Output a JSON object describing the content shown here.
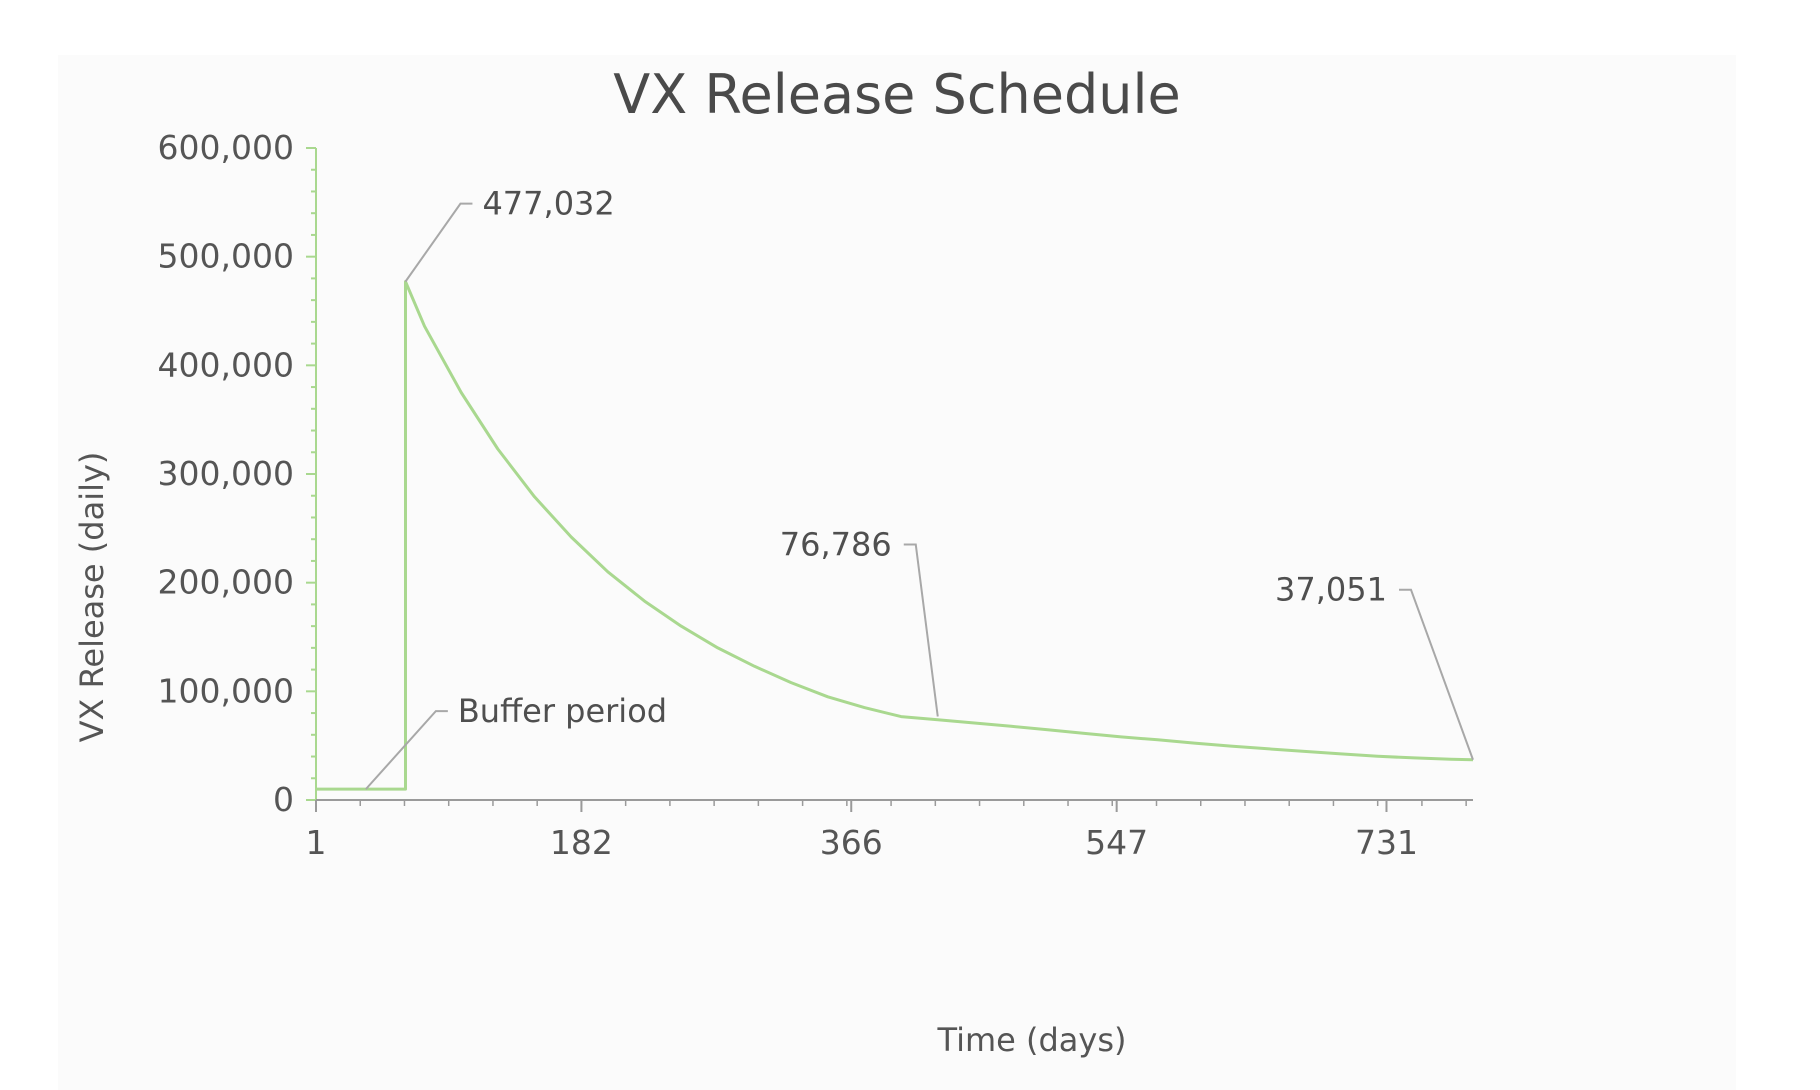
{
  "chart_data": {
    "type": "line",
    "title": "VX Release Schedule",
    "xlabel": "Time (days)",
    "ylabel": "VX Release (daily)",
    "xlim": [
      1,
      790
    ],
    "ylim": [
      0,
      600000
    ],
    "x_ticks": [
      1,
      182,
      366,
      547,
      731
    ],
    "x_tick_labels": [
      "1",
      "182",
      "366",
      "547",
      "731"
    ],
    "y_ticks": [
      0,
      100000,
      200000,
      300000,
      400000,
      500000,
      600000
    ],
    "y_tick_labels": [
      "0",
      "100,000",
      "200,000",
      "300,000",
      "400,000",
      "500,000",
      "600,000"
    ],
    "grid": false,
    "legend": "none",
    "line_color": "#a9d88f",
    "axis_color": "#a9d88f",
    "annotation_line_color": "#a8a8a8",
    "series": [
      {
        "name": "",
        "x": [
          1,
          62,
          62,
          75,
          100,
          125,
          150,
          175,
          200,
          225,
          250,
          275,
          300,
          325,
          350,
          375,
          400,
          425,
          450,
          475,
          500,
          525,
          550,
          575,
          600,
          625,
          650,
          675,
          700,
          725,
          750,
          775,
          790
        ],
        "y": [
          10000,
          10000,
          477032,
          436000,
          375000,
          323000,
          279000,
          242000,
          210000,
          183000,
          160000,
          140000,
          123000,
          108000,
          95000,
          85000,
          76786,
          73800,
          70900,
          67800,
          64600,
          61300,
          58100,
          55400,
          52400,
          49600,
          47100,
          44700,
          42400,
          40200,
          38700,
          37500,
          37051
        ]
      }
    ],
    "annotations": [
      {
        "text": "477,032",
        "x": 62,
        "y": 477032
      },
      {
        "text": "Buffer period",
        "x": 35,
        "y": 10000
      },
      {
        "text": "76,786",
        "x": 425,
        "y": 76786
      },
      {
        "text": "37,051",
        "x": 790,
        "y": 37051
      }
    ]
  }
}
